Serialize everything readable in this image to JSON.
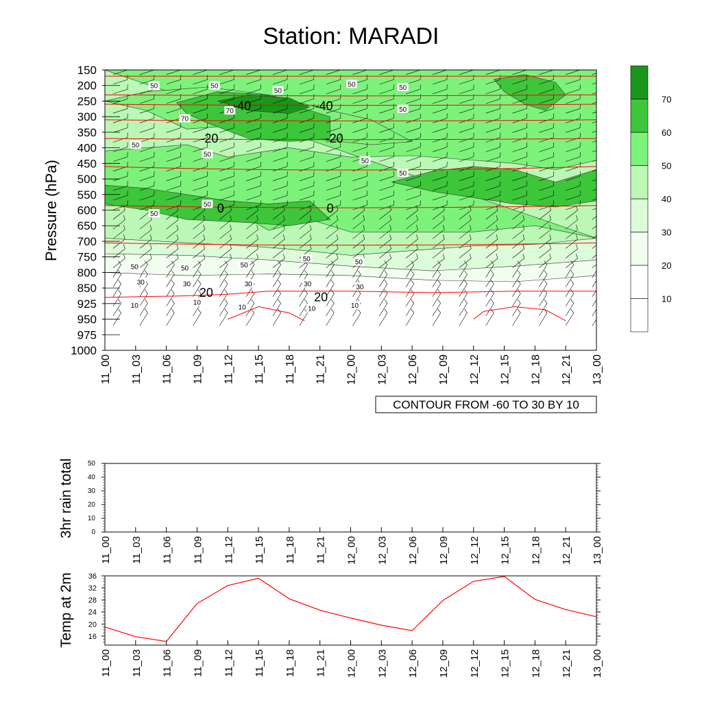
{
  "title": "Station: MARADI",
  "colors": {
    "fill_levels": [
      "#ffffff",
      "#f1fdef",
      "#dcfbd8",
      "#bbf7b5",
      "#7df27a",
      "#3dc63a",
      "#1a961a"
    ],
    "temp_line": "#ff0000",
    "axis": "#000000"
  },
  "time_labels": [
    "11_00",
    "11_03",
    "11_06",
    "11_09",
    "11_12",
    "11_15",
    "11_18",
    "11_21",
    "12_00",
    "12_03",
    "12_06",
    "12_09",
    "12_12",
    "12_15",
    "12_18",
    "12_21",
    "13_00"
  ],
  "chart_data": [
    {
      "type": "contour",
      "name": "wind-speed-cross-section",
      "ylabel": "Pressure (hPa)",
      "pressure_levels": [
        150,
        200,
        250,
        300,
        350,
        400,
        450,
        500,
        550,
        600,
        650,
        700,
        750,
        800,
        850,
        925,
        950,
        975,
        1000
      ],
      "info_box": "CONTOUR FROM -60 TO 30 BY 10",
      "colorbar": {
        "levels": [
          10,
          20,
          30,
          40,
          50,
          60,
          70
        ]
      },
      "speed_labels": [
        {
          "value": "50",
          "time": 4.8,
          "level": 1
        },
        {
          "value": "50",
          "time": 10.7,
          "level": 1
        },
        {
          "value": "50",
          "time": 16.9,
          "level": 1.3
        },
        {
          "value": "50",
          "time": 24.1,
          "level": 0.9
        },
        {
          "value": "50",
          "time": 29.1,
          "level": 1.1
        },
        {
          "value": "70",
          "time": 7.8,
          "level": 3.1
        },
        {
          "value": "70",
          "time": 12.2,
          "level": 2.6
        },
        {
          "value": "50",
          "time": 29.1,
          "level": 2.5
        },
        {
          "value": "50",
          "time": 3.0,
          "level": 4.8
        },
        {
          "value": "50",
          "time": 10.0,
          "level": 5.4
        },
        {
          "value": "50",
          "time": 25.4,
          "level": 5.8
        },
        {
          "value": "50",
          "time": 29.1,
          "level": 6.6
        },
        {
          "value": "50",
          "time": 4.8,
          "level": 9.2
        },
        {
          "value": "50",
          "time": 10.0,
          "level": 8.6
        },
        {
          "value": "50",
          "time": 2.9,
          "level": 12.6
        },
        {
          "value": "50",
          "time": 7.8,
          "level": 12.7
        },
        {
          "value": "50",
          "time": 13.6,
          "level": 12.5
        },
        {
          "value": "50",
          "time": 19.7,
          "level": 12.1
        },
        {
          "value": "50",
          "time": 24.8,
          "level": 12.3
        },
        {
          "value": "30",
          "time": 3.5,
          "level": 13.6
        },
        {
          "value": "30",
          "time": 8.0,
          "level": 13.7
        },
        {
          "value": "30",
          "time": 14.0,
          "level": 13.7
        },
        {
          "value": "30",
          "time": 19.8,
          "level": 13.7
        },
        {
          "value": "30",
          "time": 24.9,
          "level": 13.9
        },
        {
          "value": "10",
          "time": 2.9,
          "level": 15.1
        },
        {
          "value": "10",
          "time": 9.0,
          "level": 14.9
        },
        {
          "value": "10",
          "time": 13.4,
          "level": 15.2
        },
        {
          "value": "10",
          "time": 20.2,
          "level": 15.3
        },
        {
          "value": "10",
          "time": 24.4,
          "level": 15.1
        }
      ],
      "temperature_labels": [
        {
          "value": "-40",
          "time": 13.4,
          "level": 2.3
        },
        {
          "value": "-40",
          "time": 21.4,
          "level": 2.3
        },
        {
          "value": "-20",
          "time": 10.2,
          "level": 4.4
        },
        {
          "value": "-20",
          "time": 22.4,
          "level": 4.4
        },
        {
          "value": "0",
          "time": 11.3,
          "level": 8.9
        },
        {
          "value": "0",
          "time": 22.0,
          "level": 8.9
        },
        {
          "value": "20",
          "time": 9.9,
          "level": 14.3
        },
        {
          "value": "20",
          "time": 21.1,
          "level": 14.6
        }
      ]
    },
    {
      "type": "line",
      "name": "3hr-rain-total",
      "ylabel": "3hr rain total",
      "ylim": [
        0,
        50
      ],
      "yticks": [
        0,
        10,
        20,
        30,
        40,
        50
      ],
      "values": []
    },
    {
      "type": "line",
      "name": "temp-at-2m",
      "ylabel": "Temp at 2m",
      "ylim": [
        13,
        36
      ],
      "yticks": [
        16,
        20,
        24,
        28,
        32,
        36
      ],
      "x": [
        0,
        3,
        6,
        9,
        12,
        15,
        18,
        21,
        24,
        27,
        30,
        33,
        36,
        39,
        42,
        45,
        48
      ],
      "values": [
        19.0,
        15.8,
        14.2,
        26.8,
        32.8,
        35.2,
        28.4,
        24.6,
        22.0,
        19.6,
        17.8,
        27.8,
        34.2,
        35.8,
        28.2,
        24.8,
        22.4
      ]
    }
  ]
}
